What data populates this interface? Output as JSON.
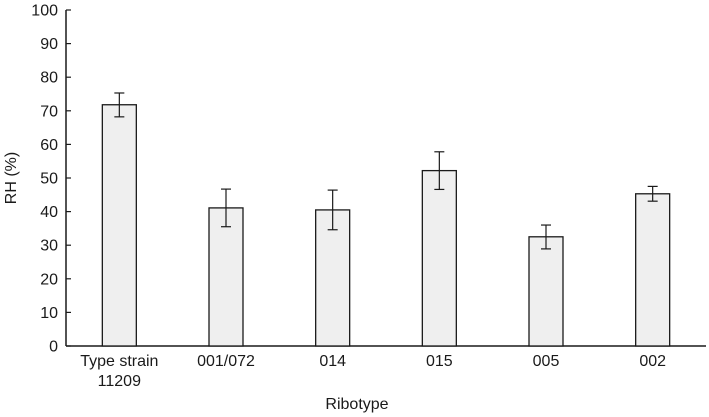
{
  "chart_data": {
    "type": "bar",
    "categories": [
      [
        "Type strain",
        "11209"
      ],
      [
        "001/072"
      ],
      [
        "014"
      ],
      [
        "015"
      ],
      [
        "005"
      ],
      [
        "002"
      ]
    ],
    "values": [
      71.8,
      41.1,
      40.5,
      52.2,
      32.5,
      45.3
    ],
    "error_low": [
      68.2,
      35.5,
      34.6,
      46.6,
      28.9,
      43.1
    ],
    "error_high": [
      75.3,
      46.7,
      46.4,
      57.8,
      36.0,
      47.5
    ],
    "xlabel": "Ribotype",
    "ylabel": "RH (%)",
    "ylim": [
      0,
      100
    ],
    "yticks": [
      0,
      10,
      20,
      30,
      40,
      50,
      60,
      70,
      80,
      90,
      100
    ],
    "grid": false,
    "colors": {
      "bar_fill": "#efefef",
      "bar_stroke": "#1a1a1a",
      "axis": "#1a1a1a"
    }
  }
}
